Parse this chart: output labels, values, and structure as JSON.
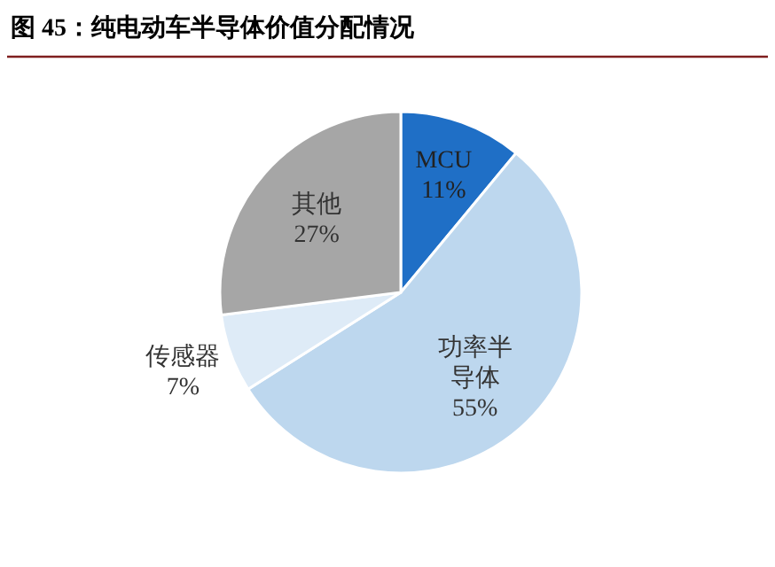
{
  "chart_data": {
    "type": "pie",
    "title": "图 45：纯电动车半导体价值分配情况",
    "categories": [
      "MCU",
      "功率半导体",
      "传感器",
      "其他"
    ],
    "values": [
      11,
      55,
      7,
      27
    ],
    "value_labels": [
      "11%",
      "55%",
      "7%",
      "27%"
    ],
    "colors": [
      "#1f6fc6",
      "#bdd7ee",
      "#deebf7",
      "#a6a6a6"
    ]
  }
}
